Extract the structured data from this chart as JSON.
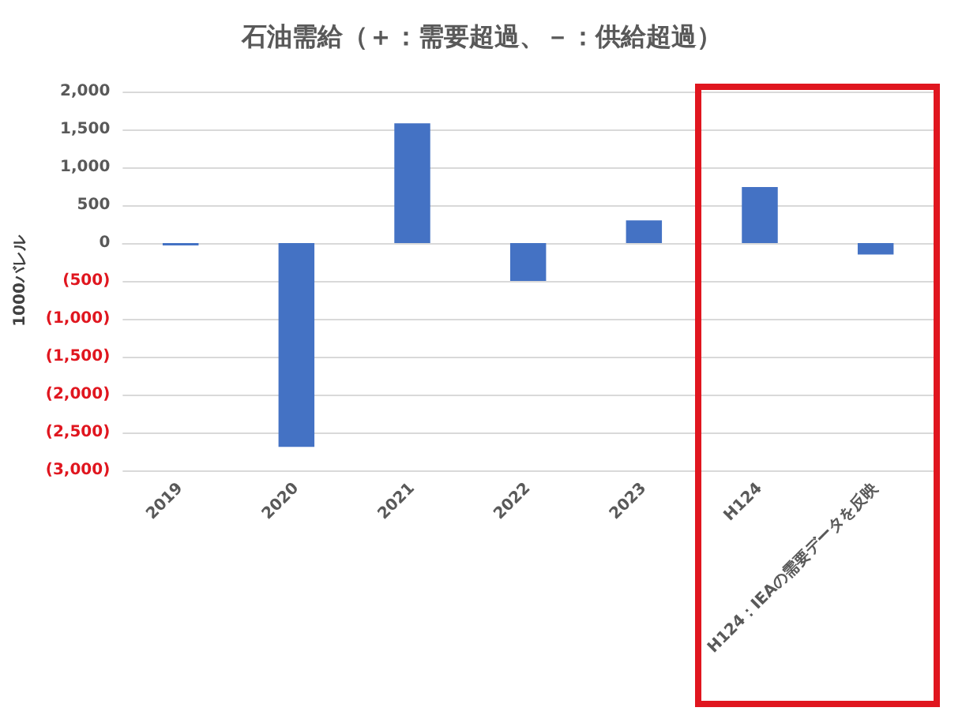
{
  "chart_data": {
    "type": "bar",
    "title": "石油需給（＋：需要超過、－：供給超過）",
    "ylabel": "1000バレル",
    "categories": [
      "2019",
      "2020",
      "2021",
      "2022",
      "2023",
      "H124",
      "H124：IEAの需要データを反映"
    ],
    "values": [
      -30,
      -2690,
      1580,
      -500,
      300,
      740,
      -150
    ],
    "color": "#4472c4",
    "ylim": [
      -3000,
      2000
    ],
    "yticks": [
      {
        "value": -3000,
        "label": "(3,000)"
      },
      {
        "value": -2500,
        "label": "(2,500)"
      },
      {
        "value": -2000,
        "label": "(2,000)"
      },
      {
        "value": -1500,
        "label": "(1,500)"
      },
      {
        "value": -1000,
        "label": "(1,000)"
      },
      {
        "value": -500,
        "label": "(500)"
      },
      0,
      {
        "value": 500,
        "label": "500"
      },
      {
        "value": 1000,
        "label": "1,000"
      },
      {
        "value": 1500,
        "label": "1,500"
      },
      {
        "value": 2000,
        "label": "2,000"
      }
    ],
    "grid": "y"
  }
}
